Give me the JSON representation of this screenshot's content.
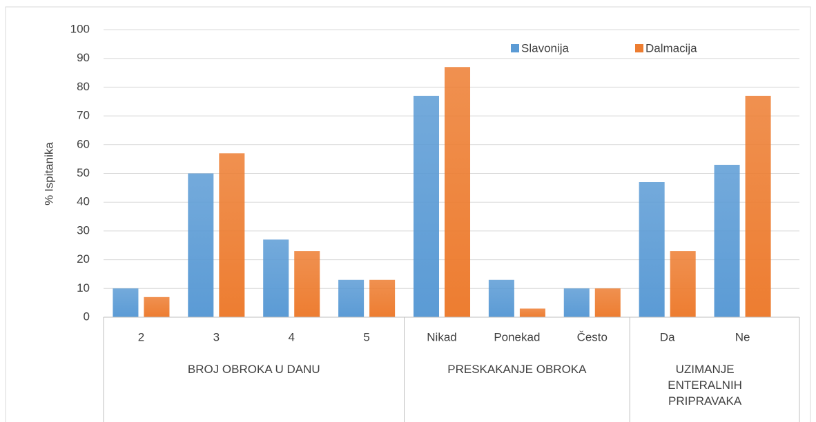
{
  "chart_data": {
    "type": "bar",
    "y_label": "% Ispitanika",
    "categories": [
      "2",
      "3",
      "4",
      "5",
      "Nikad",
      "Ponekad",
      "Često",
      "Da",
      "Ne"
    ],
    "groups": [
      {
        "label": "BROJ OBROKA U DANU",
        "count": 4
      },
      {
        "label": "PRESKAKANJE OBROKA",
        "count": 3
      },
      {
        "label": "UZIMANJE ENTERALNIH PRIPRAVAKA",
        "count": 2
      }
    ],
    "series": [
      {
        "name": "Slavonija",
        "color": "#5b9bd5",
        "values": [
          10,
          50,
          27,
          13,
          77,
          13,
          10,
          47,
          53
        ]
      },
      {
        "name": "Dalmacija",
        "color": "#ed7d31",
        "values": [
          7,
          57,
          23,
          13,
          87,
          3,
          10,
          23,
          77
        ]
      }
    ],
    "ylim": [
      0,
      100
    ],
    "yticks": [
      0,
      10,
      20,
      30,
      40,
      50,
      60,
      70,
      80,
      90,
      100
    ],
    "grid": true,
    "legend": "top-right"
  }
}
